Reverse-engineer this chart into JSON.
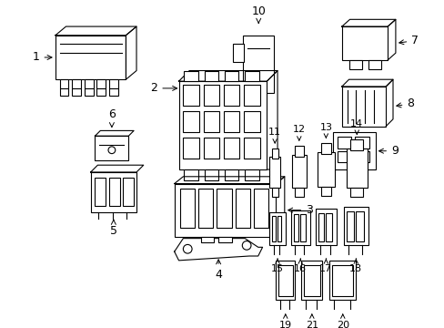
{
  "background_color": "#ffffff",
  "line_color": "#000000",
  "line_width": 0.8,
  "figsize": [
    4.89,
    3.6
  ],
  "dpi": 100
}
